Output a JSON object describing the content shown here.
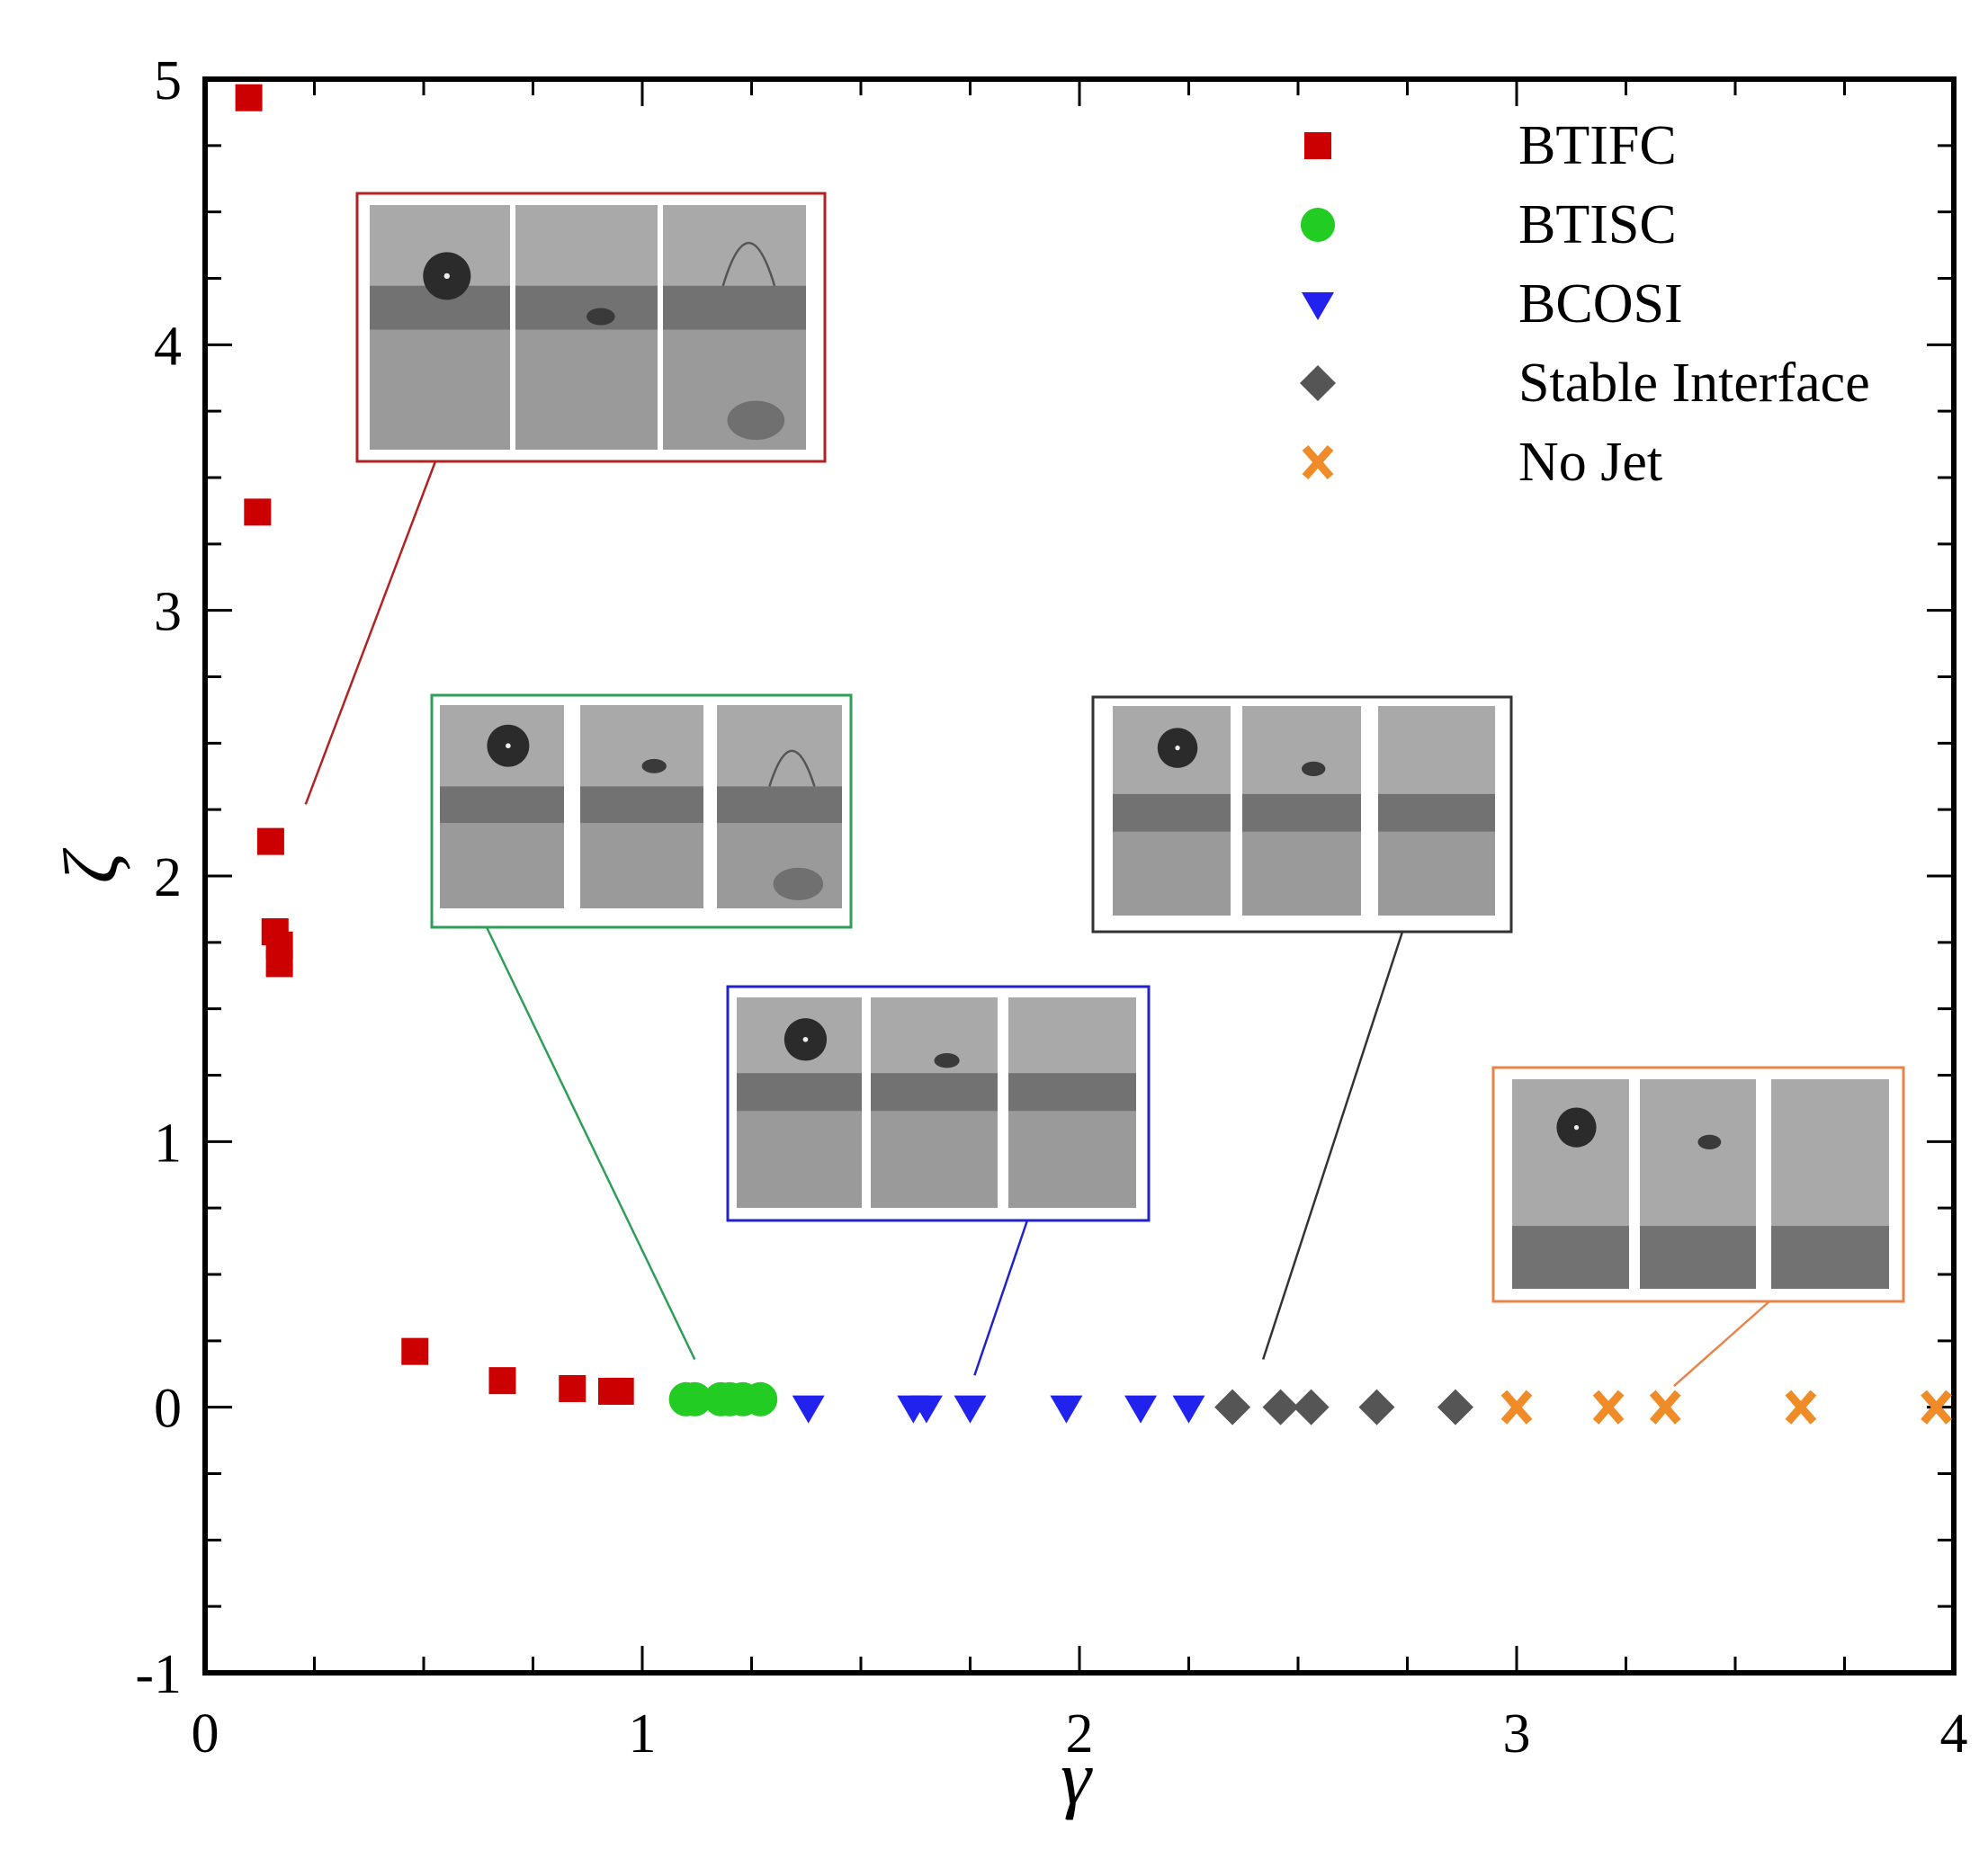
{
  "chart_data": {
    "type": "scatter",
    "title": "",
    "xlabel": "γ",
    "ylabel": "ζ",
    "xlim": [
      0,
      4
    ],
    "ylim": [
      -1,
      5
    ],
    "x_ticks": [
      "0",
      "1",
      "2",
      "3",
      "4"
    ],
    "y_ticks": [
      "-1",
      "0",
      "1",
      "2",
      "3",
      "4",
      "5"
    ],
    "legend_position": "top-right",
    "series": [
      {
        "name": "BTIFC",
        "marker": "square",
        "color": "#cc0000",
        "points": [
          [
            0.1,
            4.93
          ],
          [
            0.12,
            3.37
          ],
          [
            0.15,
            2.13
          ],
          [
            0.16,
            1.79
          ],
          [
            0.17,
            1.74
          ],
          [
            0.17,
            1.67
          ],
          [
            0.48,
            0.21
          ],
          [
            0.68,
            0.1
          ],
          [
            0.84,
            0.07
          ],
          [
            0.93,
            0.06
          ],
          [
            0.95,
            0.06
          ]
        ]
      },
      {
        "name": "BTISC",
        "marker": "circle",
        "color": "#22cc22",
        "points": [
          [
            1.1,
            0.03
          ],
          [
            1.12,
            0.03
          ],
          [
            1.18,
            0.03
          ],
          [
            1.2,
            0.03
          ],
          [
            1.23,
            0.03
          ],
          [
            1.27,
            0.03
          ]
        ]
      },
      {
        "name": "BCOSI",
        "marker": "triangle-down",
        "color": "#2222ee",
        "points": [
          [
            1.38,
            0.0
          ],
          [
            1.62,
            0.0
          ],
          [
            1.65,
            0.0
          ],
          [
            1.75,
            0.0
          ],
          [
            1.97,
            0.0
          ],
          [
            2.14,
            0.0
          ],
          [
            2.25,
            0.0
          ]
        ]
      },
      {
        "name": "Stable Interface",
        "marker": "diamond",
        "color": "#555555",
        "points": [
          [
            2.35,
            0.0
          ],
          [
            2.46,
            0.0
          ],
          [
            2.53,
            0.0
          ],
          [
            2.68,
            0.0
          ],
          [
            2.86,
            0.0
          ]
        ]
      },
      {
        "name": "No Jet",
        "marker": "x",
        "color": "#f08c28",
        "points": [
          [
            3.0,
            0.0
          ],
          [
            3.21,
            0.0
          ],
          [
            3.34,
            0.0
          ],
          [
            3.65,
            0.0
          ],
          [
            3.96,
            0.0
          ]
        ]
      }
    ],
    "insets": [
      {
        "series": "BTIFC",
        "frame_color": "#b22222",
        "panels": 3,
        "pointer_to": [
          0.23,
          2.27
        ]
      },
      {
        "series": "BTISC",
        "frame_color": "#2e9e58",
        "panels": 3,
        "pointer_to": [
          1.12,
          0.18
        ]
      },
      {
        "series": "BCOSI",
        "frame_color": "#2222cc",
        "panels": 3,
        "pointer_to": [
          1.76,
          0.12
        ]
      },
      {
        "series": "Stable Interface",
        "frame_color": "#333333",
        "panels": 3,
        "pointer_to": [
          2.42,
          0.18
        ]
      },
      {
        "series": "No Jet",
        "frame_color": "#e8844a",
        "panels": 3,
        "pointer_to": [
          3.36,
          0.08
        ]
      }
    ]
  }
}
